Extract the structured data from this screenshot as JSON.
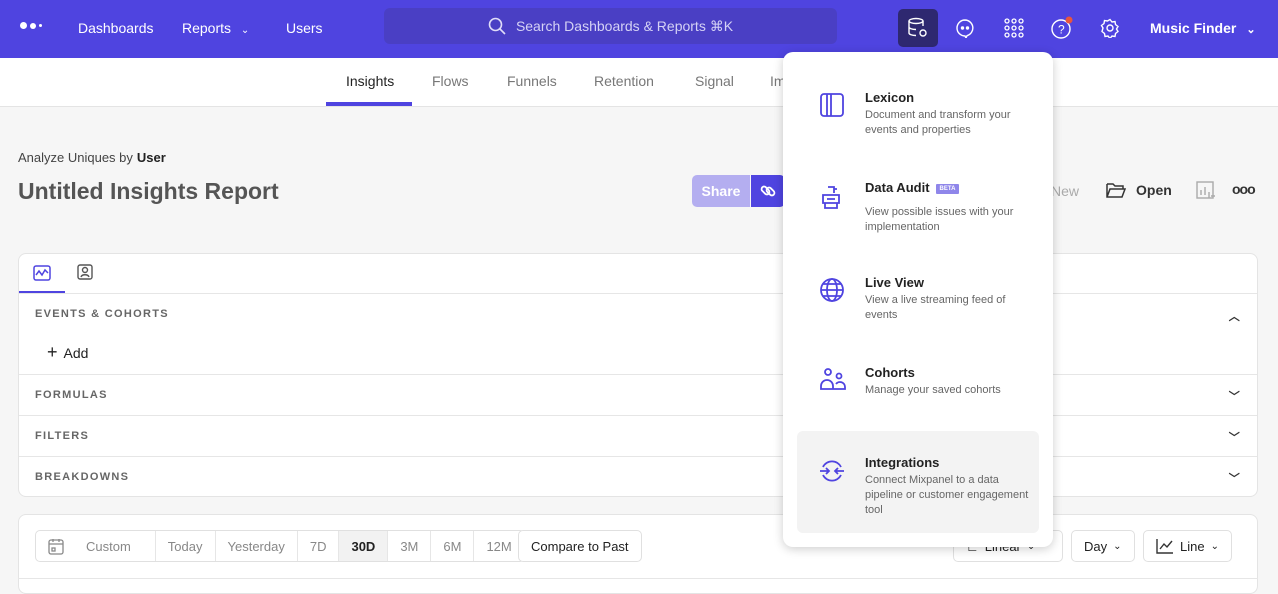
{
  "topbar": {
    "nav": [
      "Dashboards",
      "Reports",
      "Users"
    ],
    "search_placeholder": "Search Dashboards & Reports ⌘K",
    "project": "Music Finder",
    "icons": [
      "data-management-icon",
      "chat-icon",
      "apps-grid-icon",
      "help-icon",
      "settings-icon"
    ],
    "accent": "#4f44e0"
  },
  "subnav": {
    "tabs": [
      "Insights",
      "Flows",
      "Funnels",
      "Retention",
      "Signal",
      "Impact"
    ],
    "active": "Insights"
  },
  "report": {
    "analyze_label": "Analyze Uniques by",
    "analyze_value": "User",
    "title": "Untitled Insights Report",
    "share": "Share",
    "new": "New",
    "open": "Open"
  },
  "query": {
    "sections": [
      "EVENTS & COHORTS",
      "FORMULAS",
      "FILTERS",
      "BREAKDOWNS"
    ],
    "add": "Add"
  },
  "controls": {
    "ranges": [
      "Custom",
      "Today",
      "Yesterday",
      "7D",
      "30D",
      "3M",
      "6M",
      "12M"
    ],
    "active_range": "30D",
    "compare": "Compare to Past",
    "scale": "Linear",
    "interval": "Day",
    "chart": "Line"
  },
  "menu": {
    "items": [
      {
        "title": "Lexicon",
        "desc": "Document and transform your events and properties",
        "icon": "lexicon-icon"
      },
      {
        "title": "Data Audit",
        "badge": "BETA",
        "desc": "View possible issues with your implementation",
        "icon": "data-audit-icon"
      },
      {
        "title": "Live View",
        "desc": "View a live streaming feed of events",
        "icon": "globe-icon"
      },
      {
        "title": "Cohorts",
        "desc": "Manage your saved cohorts",
        "icon": "users-icon"
      },
      {
        "title": "Integrations",
        "desc": "Connect Mixpanel to a data pipeline or customer engagement tool",
        "icon": "integrations-icon"
      }
    ]
  }
}
